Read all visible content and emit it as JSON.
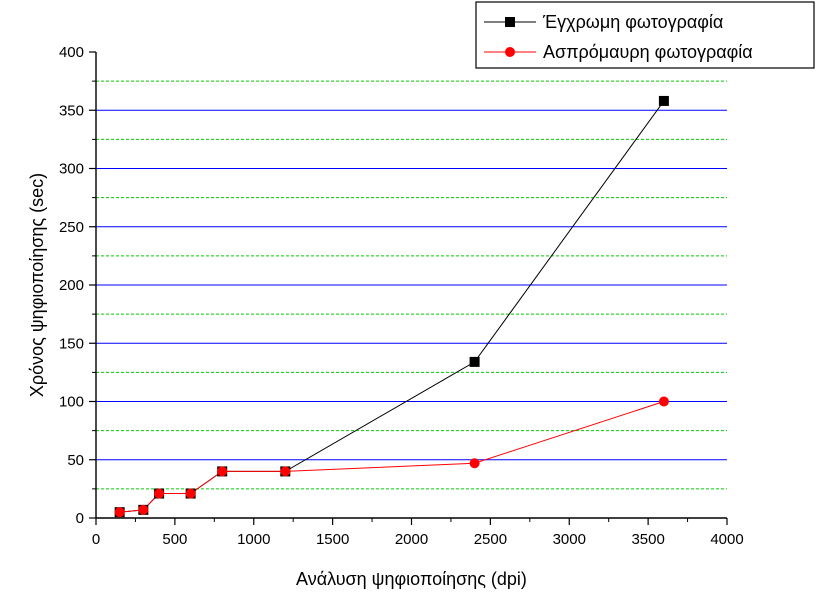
{
  "chart_data": {
    "type": "line",
    "xlabel": "Ανάλυση ψηφιοποίησης (dpi)",
    "ylabel": "Χρόνος ψηφιοποίησης (sec)",
    "xlim": [
      0,
      4000
    ],
    "ylim": [
      0,
      400
    ],
    "xticks": [
      0,
      500,
      1000,
      1500,
      2000,
      2500,
      3000,
      3500,
      4000
    ],
    "yticks": [
      0,
      50,
      100,
      150,
      200,
      250,
      300,
      350,
      400
    ],
    "grid": {
      "major": {
        "every": 50,
        "style": "solid",
        "color": "#0000ff"
      },
      "minor": {
        "every": 25,
        "style": "dashed",
        "color": "#00cc00"
      }
    },
    "legend_position": "top-right",
    "series": [
      {
        "name": "Έγχρωμη φωτογραφία",
        "color": "#000000",
        "marker": "square",
        "x": [
          150,
          300,
          400,
          600,
          800,
          1200,
          2400,
          3600
        ],
        "y": [
          5,
          7,
          21,
          21,
          40,
          40,
          134,
          358
        ]
      },
      {
        "name": "Ασπρόμαυρη φωτογραφία",
        "color": "#ff0000",
        "marker": "circle",
        "x": [
          150,
          300,
          400,
          600,
          800,
          1200,
          2400,
          3600
        ],
        "y": [
          5,
          7,
          21,
          21,
          40,
          40,
          47,
          100
        ]
      }
    ]
  }
}
